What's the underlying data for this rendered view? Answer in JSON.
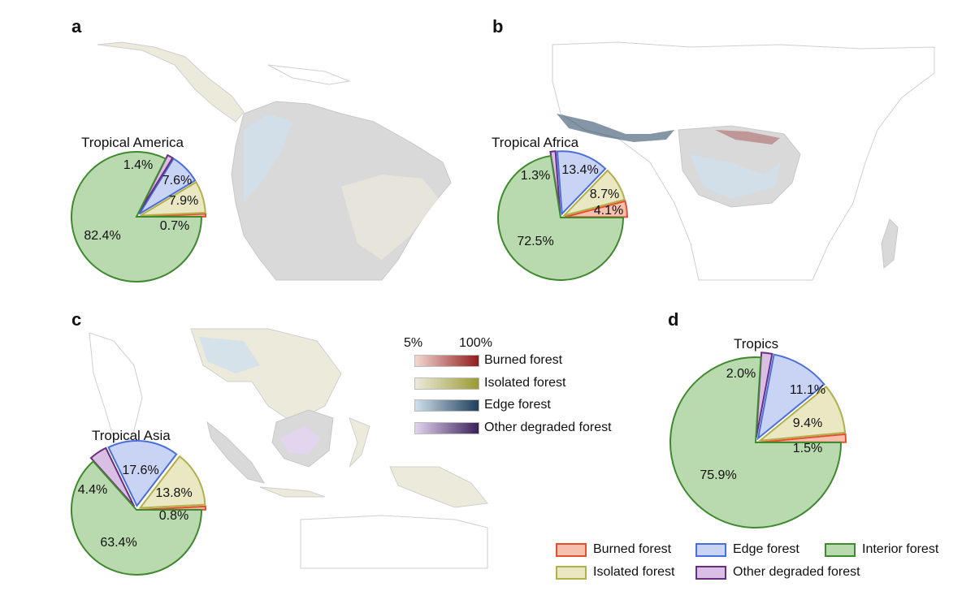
{
  "panels": {
    "a": {
      "letter": "a",
      "title": "Tropical America"
    },
    "b": {
      "letter": "b",
      "title": "Tropical Africa"
    },
    "c": {
      "letter": "c",
      "title": "Tropical Asia"
    },
    "d": {
      "letter": "d",
      "title": "Tropics"
    }
  },
  "colors": {
    "burned": {
      "fill": "#f6c0ae",
      "stroke": "#e4502e",
      "dark": "#8f1d1d",
      "light": "#f3d8d2"
    },
    "isolated": {
      "fill": "#e9e8c2",
      "stroke": "#b3b04a",
      "dark": "#9b9a34",
      "light": "#eceadb"
    },
    "edge": {
      "fill": "#c9d3f3",
      "stroke": "#4a6fdc",
      "dark": "#1f3f5c",
      "light": "#cfe0ec"
    },
    "other": {
      "fill": "#d9bfe3",
      "stroke": "#6b2d7e",
      "dark": "#3b1f59",
      "light": "#e2d4ef"
    },
    "interior": {
      "fill": "#b9d9ae",
      "stroke": "#3f8a2e"
    },
    "map_land": "#d9d9d9",
    "map_border": "#c8c8c8"
  },
  "legend_scale": {
    "low": "5%",
    "high": "100%"
  },
  "legend_gradient": [
    {
      "key": "burned",
      "label": "Burned forest"
    },
    {
      "key": "isolated",
      "label": "Isolated forest"
    },
    {
      "key": "edge",
      "label": "Edge forest"
    },
    {
      "key": "other",
      "label": "Other degraded forest"
    }
  ],
  "legend_d": [
    {
      "key": "burned",
      "label": "Burned forest"
    },
    {
      "key": "edge",
      "label": "Edge forest"
    },
    {
      "key": "interior",
      "label": "Interior forest"
    },
    {
      "key": "isolated",
      "label": "Isolated forest"
    },
    {
      "key": "other",
      "label": "Other degraded forest"
    }
  ],
  "chart_data": [
    {
      "type": "pie",
      "title": "Tropical America",
      "categories": [
        "Burned forest",
        "Isolated forest",
        "Edge forest",
        "Other degraded forest",
        "Interior forest"
      ],
      "values": [
        0.7,
        7.9,
        7.6,
        1.4,
        82.4
      ],
      "labels": [
        "0.7%",
        "7.9%",
        "7.6%",
        "1.4%",
        "82.4%"
      ]
    },
    {
      "type": "pie",
      "title": "Tropical Africa",
      "categories": [
        "Burned forest",
        "Isolated forest",
        "Edge forest",
        "Other degraded forest",
        "Interior forest"
      ],
      "values": [
        4.1,
        8.7,
        13.4,
        1.3,
        72.5
      ],
      "labels": [
        "4.1%",
        "8.7%",
        "13.4%",
        "1.3%",
        "72.5%"
      ]
    },
    {
      "type": "pie",
      "title": "Tropical Asia",
      "categories": [
        "Burned forest",
        "Isolated forest",
        "Edge forest",
        "Other degraded forest",
        "Interior forest"
      ],
      "values": [
        0.8,
        13.8,
        17.6,
        4.4,
        63.4
      ],
      "labels": [
        "0.8%",
        "13.8%",
        "17.6%",
        "4.4%",
        "63.4%"
      ]
    },
    {
      "type": "pie",
      "title": "Tropics",
      "categories": [
        "Burned forest",
        "Isolated forest",
        "Edge forest",
        "Other degraded forest",
        "Interior forest"
      ],
      "values": [
        1.5,
        9.4,
        11.1,
        2.0,
        75.9
      ],
      "labels": [
        "1.5%",
        "9.4%",
        "11.1%",
        "2.0%",
        "75.9%"
      ]
    }
  ]
}
